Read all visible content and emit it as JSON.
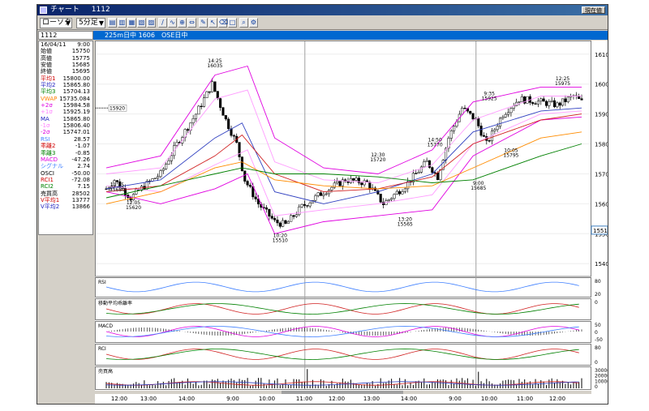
{
  "window": {
    "title": "チャート",
    "symbol": "1112",
    "action_button": "現在値"
  },
  "toolbar": {
    "chart_type": "ローソク",
    "interval": "5分足",
    "symbol_input": "1112"
  },
  "infobar": {
    "market": "225m日中 1606",
    "session": "OSE日中"
  },
  "panel": {
    "rows": [
      {
        "label": "16/04/11",
        "value": "9:00",
        "color": "#000000"
      },
      {
        "label": "始値",
        "value": "15750",
        "color": "#000000"
      },
      {
        "label": "高値",
        "value": "15775",
        "color": "#000000"
      },
      {
        "label": "安値",
        "value": "15685",
        "color": "#000000"
      },
      {
        "label": "終値",
        "value": "15695",
        "color": "#000000"
      },
      {
        "label": "平均1",
        "value": "15800.00",
        "color": "#d00000"
      },
      {
        "label": "平均2",
        "value": "15865.80",
        "color": "#2020c0"
      },
      {
        "label": "平均3",
        "value": "15704.13",
        "color": "#008000"
      },
      {
        "label": "VWAP",
        "value": "15735.084",
        "color": "#ff8000"
      },
      {
        "label": "+2σ",
        "value": "15984.58",
        "color": "#e000e0"
      },
      {
        "label": "+1σ",
        "value": "15925.19",
        "color": "#ff80ff"
      },
      {
        "label": "MA",
        "value": "15865.80",
        "color": "#2020c0"
      },
      {
        "label": "-1σ",
        "value": "15806.40",
        "color": "#ff80ff"
      },
      {
        "label": "-2σ",
        "value": "15747.01",
        "color": "#e000e0"
      },
      {
        "label": "RSI",
        "value": "28.57",
        "color": "#4080ff"
      },
      {
        "label": "乖離2",
        "value": "-1.07",
        "color": "#d00000"
      },
      {
        "label": "乖離3",
        "value": "-0.85",
        "color": "#008000"
      },
      {
        "label": "MACD",
        "value": "-47.26",
        "color": "#e000e0"
      },
      {
        "label": "シグナル",
        "value": "2.74",
        "color": "#4080ff"
      },
      {
        "label": "OSCI",
        "value": "-50.00",
        "color": "#000000"
      },
      {
        "label": "RCI1",
        "value": "-72.08",
        "color": "#d00000"
      },
      {
        "label": "RCI2",
        "value": "7.15",
        "color": "#008000"
      },
      {
        "label": "売買高",
        "value": "28502",
        "color": "#000000"
      },
      {
        "label": "V平均1",
        "value": "13777",
        "color": "#d00000"
      },
      {
        "label": "V平均2",
        "value": "13866",
        "color": "#2020c0"
      }
    ]
  },
  "chart_data": {
    "type": "candlestick",
    "price_axis_ticks": [
      "16100",
      "16000",
      "15900",
      "15800",
      "15700",
      "15600",
      "15500",
      "15400"
    ],
    "ylim": [
      15360,
      16140
    ],
    "current_price_label": "15512",
    "crosshair_price_label": "15920",
    "time_ticks": [
      "12:00",
      "13:00",
      "14:00",
      "9:00",
      "10:00",
      "11:00",
      "12:00",
      "13:00",
      "14:00",
      "9:00",
      "10:00",
      "11:00",
      "12:00"
    ],
    "annotations": [
      {
        "time": "11:35",
        "price": "15680"
      },
      {
        "time": "12:05",
        "price": "15620"
      },
      {
        "time": "14:25",
        "price": "16035"
      },
      {
        "time": "10:20",
        "price": "15510"
      },
      {
        "time": "12:30",
        "price": "15720"
      },
      {
        "time": "13:20",
        "price": "15565"
      },
      {
        "time": "14:50",
        "price": "15770"
      },
      {
        "time": "9:00",
        "price": "15685"
      },
      {
        "time": "9:35",
        "price": "15925"
      },
      {
        "time": "10:05",
        "price": "15795"
      },
      {
        "time": "12:25",
        "price": "15975"
      }
    ],
    "key_closes": [
      {
        "i": 0,
        "v": 15650
      },
      {
        "i": 3,
        "v": 15680
      },
      {
        "i": 9,
        "v": 15620
      },
      {
        "i": 14,
        "v": 15660
      },
      {
        "i": 20,
        "v": 15700
      },
      {
        "i": 26,
        "v": 15800
      },
      {
        "i": 33,
        "v": 15900
      },
      {
        "i": 39,
        "v": 16000
      },
      {
        "i": 44,
        "v": 15880
      },
      {
        "i": 48,
        "v": 15800
      },
      {
        "i": 51,
        "v": 15680
      },
      {
        "i": 56,
        "v": 15600
      },
      {
        "i": 62,
        "v": 15540
      },
      {
        "i": 66,
        "v": 15530
      },
      {
        "i": 72,
        "v": 15590
      },
      {
        "i": 80,
        "v": 15640
      },
      {
        "i": 88,
        "v": 15680
      },
      {
        "i": 96,
        "v": 15670
      },
      {
        "i": 102,
        "v": 15600
      },
      {
        "i": 110,
        "v": 15660
      },
      {
        "i": 118,
        "v": 15740
      },
      {
        "i": 122,
        "v": 15690
      },
      {
        "i": 126,
        "v": 15820
      },
      {
        "i": 131,
        "v": 15920
      },
      {
        "i": 136,
        "v": 15880
      },
      {
        "i": 140,
        "v": 15800
      },
      {
        "i": 146,
        "v": 15900
      },
      {
        "i": 152,
        "v": 15950
      },
      {
        "i": 160,
        "v": 15940
      },
      {
        "i": 166,
        "v": 15930
      },
      {
        "i": 172,
        "v": 15960
      },
      {
        "i": 175,
        "v": 15940
      }
    ],
    "overlays": {
      "upper_2sigma": [
        [
          0,
          15720
        ],
        [
          20,
          15760
        ],
        [
          40,
          16030
        ],
        [
          52,
          16060
        ],
        [
          62,
          15820
        ],
        [
          80,
          15720
        ],
        [
          100,
          15700
        ],
        [
          120,
          15780
        ],
        [
          135,
          15940
        ],
        [
          160,
          15990
        ],
        [
          175,
          15990
        ]
      ],
      "lower_2sigma": [
        [
          0,
          15640
        ],
        [
          20,
          15600
        ],
        [
          40,
          15650
        ],
        [
          52,
          15700
        ],
        [
          62,
          15500
        ],
        [
          80,
          15540
        ],
        [
          100,
          15560
        ],
        [
          120,
          15580
        ],
        [
          135,
          15760
        ],
        [
          160,
          15880
        ],
        [
          175,
          15890
        ]
      ],
      "upper_1sigma": [
        [
          0,
          15700
        ],
        [
          20,
          15720
        ],
        [
          40,
          15950
        ],
        [
          52,
          15980
        ],
        [
          62,
          15740
        ],
        [
          80,
          15680
        ],
        [
          100,
          15670
        ],
        [
          120,
          15730
        ],
        [
          135,
          15880
        ],
        [
          160,
          15960
        ],
        [
          175,
          15960
        ]
      ],
      "lower_1sigma": [
        [
          0,
          15660
        ],
        [
          20,
          15640
        ],
        [
          40,
          15730
        ],
        [
          52,
          15780
        ],
        [
          62,
          15560
        ],
        [
          80,
          15580
        ],
        [
          100,
          15600
        ],
        [
          120,
          15630
        ],
        [
          135,
          15800
        ],
        [
          160,
          15900
        ],
        [
          175,
          15910
        ]
      ],
      "ma_fast": [
        [
          0,
          15650
        ],
        [
          20,
          15680
        ],
        [
          40,
          15820
        ],
        [
          50,
          15870
        ],
        [
          62,
          15640
        ],
        [
          80,
          15600
        ],
        [
          100,
          15640
        ],
        [
          120,
          15700
        ],
        [
          135,
          15840
        ],
        [
          160,
          15910
        ],
        [
          175,
          15920
        ]
      ],
      "ma_mid": [
        [
          0,
          15640
        ],
        [
          20,
          15660
        ],
        [
          40,
          15760
        ],
        [
          50,
          15830
        ],
        [
          62,
          15700
        ],
        [
          80,
          15640
        ],
        [
          100,
          15650
        ],
        [
          120,
          15690
        ],
        [
          135,
          15800
        ],
        [
          160,
          15880
        ],
        [
          175,
          15900
        ]
      ],
      "vwap": [
        [
          0,
          15600
        ],
        [
          20,
          15640
        ],
        [
          40,
          15720
        ],
        [
          50,
          15740
        ],
        [
          62,
          15680
        ],
        [
          80,
          15660
        ],
        [
          100,
          15650
        ],
        [
          120,
          15660
        ],
        [
          135,
          15720
        ],
        [
          160,
          15820
        ],
        [
          175,
          15840
        ]
      ],
      "ma_slow": [
        [
          0,
          15620
        ],
        [
          20,
          15660
        ],
        [
          40,
          15700
        ],
        [
          50,
          15720
        ],
        [
          62,
          15700
        ],
        [
          80,
          15700
        ],
        [
          100,
          15690
        ],
        [
          120,
          15670
        ],
        [
          135,
          15680
        ],
        [
          160,
          15760
        ],
        [
          175,
          15800
        ]
      ]
    },
    "subcharts": [
      {
        "name": "RSI",
        "ticks": [
          "80",
          "20"
        ]
      },
      {
        "name": "移動平均乖離率",
        "ticks": [
          "0"
        ]
      },
      {
        "name": "MACD",
        "ticks": [
          "50",
          "0",
          "-50"
        ]
      },
      {
        "name": "RCI",
        "ticks": [
          "80",
          "0"
        ]
      },
      {
        "name": "売買高",
        "ticks": [
          "30000",
          "20000",
          "10000",
          "0"
        ]
      }
    ]
  }
}
